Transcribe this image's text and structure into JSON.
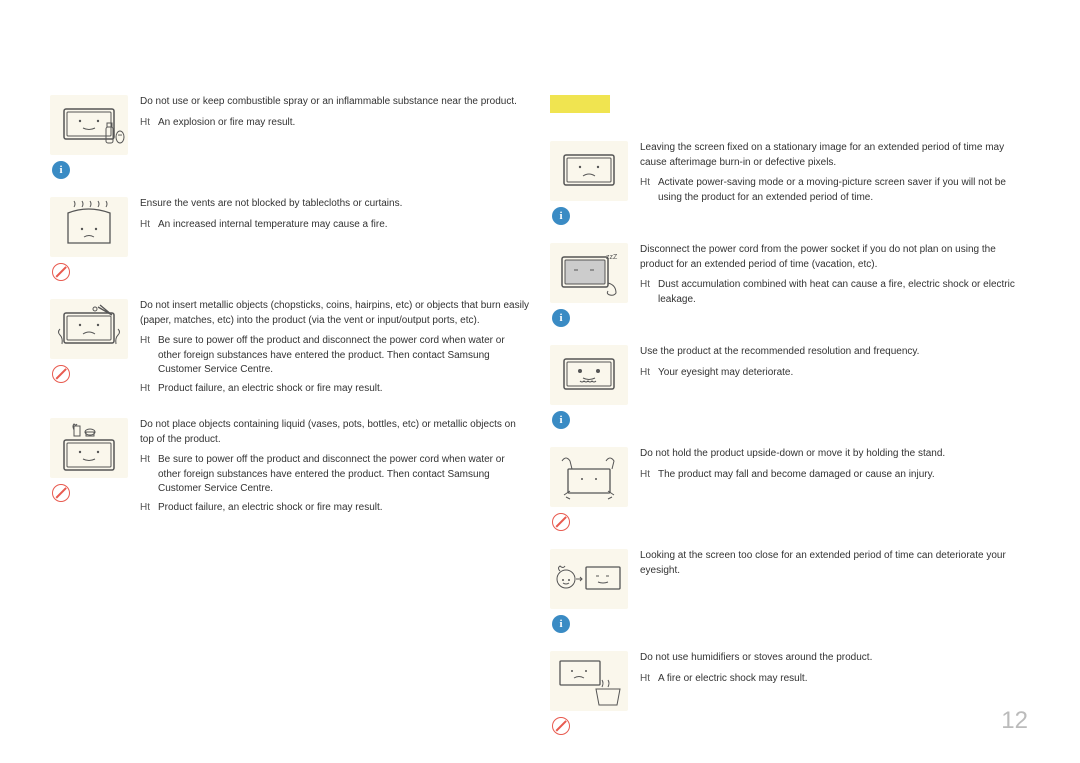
{
  "page_number": "12",
  "styling": {
    "bg": "#ffffff",
    "text_color": "#333333",
    "illus_bg": "#faf7ec",
    "prohibit_color": "#e85a4f",
    "info_color": "#3a8bc4",
    "page_num_color": "#bbbbbb",
    "separator_color": "#f0e450",
    "body_fontsize": 10,
    "pagenum_fontsize": 24
  },
  "bullet_prefix": "Ht",
  "left_blocks": [
    {
      "icon": "spray",
      "badge": "info",
      "main": "Do not use or keep combustible spray or an inflammable substance near the product.",
      "subs": [
        "An explosion or fire may result."
      ]
    },
    {
      "icon": "vents",
      "badge": "prohibit",
      "main": "Ensure the vents are not blocked by tablecloths or curtains.",
      "subs": [
        "An increased internal temperature may cause a fire."
      ]
    },
    {
      "icon": "metal",
      "badge": "prohibit",
      "main": "Do not insert metallic objects (chopsticks, coins, hairpins, etc) or objects that burn easily (paper, matches, etc) into the product (via the vent or input/output ports, etc).",
      "subs": [
        "Be sure to power off the product and disconnect the power cord when water or other foreign substances have entered the product. Then contact Samsung Customer Service Centre.",
        "Product failure, an electric shock or fire may result."
      ]
    },
    {
      "icon": "liquid",
      "badge": "prohibit",
      "main": "Do not place objects containing liquid (vases, pots, bottles, etc) or metallic objects on top of the product.",
      "subs": [
        "Be sure to power off the product and disconnect the power cord when water or other foreign substances have entered the product. Then contact Samsung Customer Service Centre.",
        "Product failure, an electric shock or fire may result."
      ]
    }
  ],
  "right_blocks": [
    {
      "icon": "burnin",
      "badge": "info",
      "main": "Leaving the screen fixed on a stationary image for an extended period of time may cause afterimage burn-in or defective pixels.",
      "subs": [
        "Activate power-saving mode or a moving-picture screen saver if you will not be using the product for an extended period of time."
      ]
    },
    {
      "icon": "sleep",
      "badge": "info",
      "main": "Disconnect the power cord from the power socket if you do not plan on using the product for an extended period of time (vacation, etc).",
      "subs": [
        "Dust accumulation combined with heat can cause a fire, electric shock or electric leakage."
      ]
    },
    {
      "icon": "resolution",
      "badge": "info",
      "main": "Use the product at the recommended resolution and frequency.",
      "subs": [
        "Your eyesight may deteriorate."
      ]
    },
    {
      "icon": "upside",
      "badge": "prohibit",
      "main": "Do not hold the product upside-down or move it by holding the stand.",
      "subs": [
        "The product may fall and become damaged or cause an injury."
      ]
    },
    {
      "icon": "eyesight",
      "badge": "info",
      "main": "Looking at the screen too close for an extended period of time can deteriorate your eyesight.",
      "subs": []
    },
    {
      "icon": "humidifier",
      "badge": "prohibit",
      "main": "Do not use humidifiers or stoves around the product.",
      "subs": [
        "A fire or electric shock may result."
      ]
    }
  ]
}
